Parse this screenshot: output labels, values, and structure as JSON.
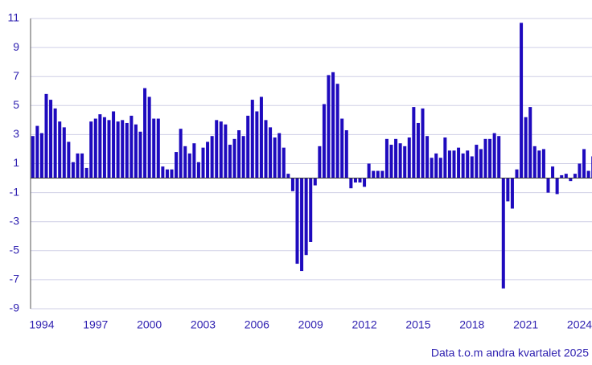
{
  "chart_data": {
    "type": "bar",
    "categories": [
      null,
      null,
      "1994",
      null,
      null,
      null,
      null,
      null,
      null,
      null,
      null,
      null,
      null,
      null,
      "1997",
      null,
      null,
      null,
      null,
      null,
      null,
      null,
      null,
      null,
      null,
      null,
      "2000",
      null,
      null,
      null,
      null,
      null,
      null,
      null,
      null,
      null,
      null,
      null,
      "2003",
      null,
      null,
      null,
      null,
      null,
      null,
      null,
      null,
      null,
      null,
      null,
      "2006",
      null,
      null,
      null,
      null,
      null,
      null,
      null,
      null,
      null,
      null,
      null,
      "2009",
      null,
      null,
      null,
      null,
      null,
      null,
      null,
      null,
      null,
      null,
      null,
      "2012",
      null,
      null,
      null,
      null,
      null,
      null,
      null,
      null,
      null,
      null,
      null,
      "2015",
      null,
      null,
      null,
      null,
      null,
      null,
      null,
      null,
      null,
      null,
      null,
      "2018",
      null,
      null,
      null,
      null,
      null,
      null,
      null,
      null,
      null,
      null,
      null,
      "2021",
      null,
      null,
      null,
      null,
      null,
      null,
      null,
      null,
      null,
      null,
      null,
      "2024",
      null,
      null,
      null
    ],
    "values": [
      2.9,
      3.6,
      3.1,
      5.8,
      5.4,
      4.8,
      3.9,
      3.5,
      2.5,
      1.1,
      1.7,
      1.7,
      0.7,
      3.9,
      4.1,
      4.4,
      4.2,
      4.0,
      4.6,
      3.9,
      4.0,
      3.8,
      4.3,
      3.7,
      3.2,
      6.2,
      5.6,
      4.1,
      4.1,
      0.8,
      0.6,
      0.6,
      1.8,
      3.4,
      2.2,
      1.7,
      2.4,
      1.1,
      2.1,
      2.5,
      2.9,
      4.0,
      3.9,
      3.7,
      2.3,
      2.7,
      3.3,
      2.9,
      4.3,
      5.4,
      4.6,
      5.6,
      4.0,
      3.5,
      2.8,
      3.1,
      2.1,
      0.3,
      -0.9,
      -5.9,
      -6.4,
      -5.3,
      -4.4,
      -0.5,
      2.2,
      5.1,
      7.1,
      7.3,
      6.5,
      4.1,
      3.3,
      -0.7,
      -0.3,
      -0.3,
      -0.6,
      1.0,
      0.5,
      0.5,
      0.5,
      2.7,
      2.3,
      2.7,
      2.4,
      2.2,
      2.8,
      4.9,
      3.8,
      4.8,
      2.9,
      1.4,
      1.7,
      1.4,
      2.8,
      1.9,
      1.9,
      2.1,
      1.7,
      1.9,
      1.5,
      2.3,
      2.0,
      2.7,
      2.7,
      3.1,
      2.9,
      -7.6,
      -1.6,
      -2.1,
      0.6,
      10.7,
      4.2,
      4.9,
      2.2,
      1.9,
      2.0,
      -1.0,
      0.8,
      -1.1,
      0.2,
      0.3,
      -0.2,
      0.3,
      1.0,
      2.0,
      0.5,
      1.5
    ],
    "color": "#1e0abe",
    "ylim": [
      -9,
      11
    ],
    "yticks": [
      -9,
      -7,
      -5,
      -3,
      -1,
      1,
      3,
      5,
      7,
      9,
      11
    ],
    "grid": true,
    "source": "Data t.o.m andra kvartalet 2025"
  }
}
